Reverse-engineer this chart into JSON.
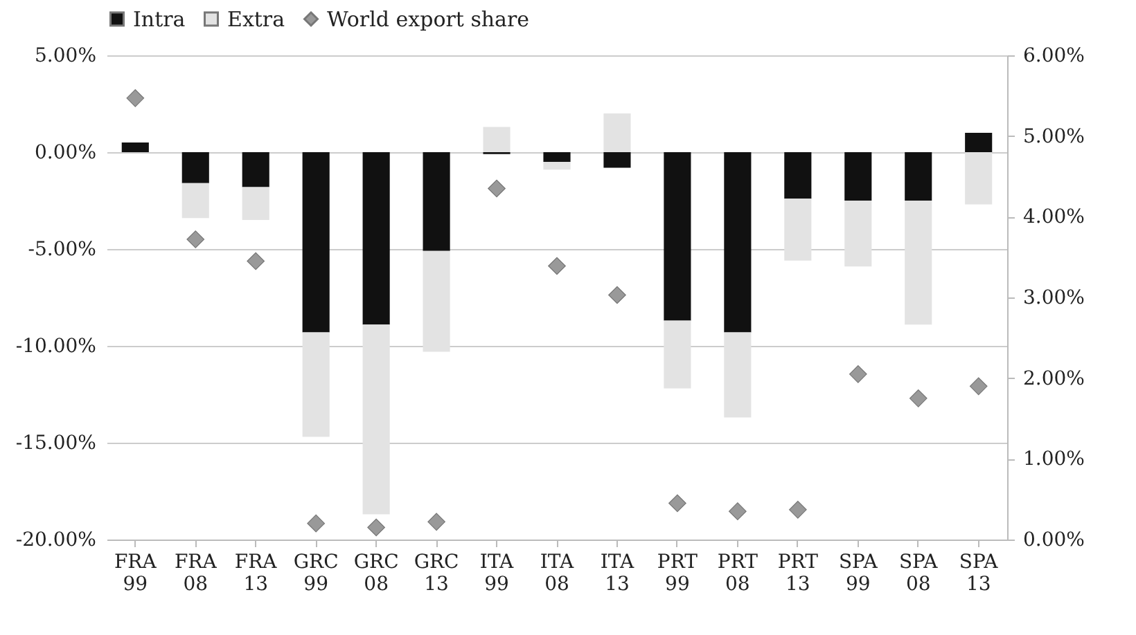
{
  "chart_data": {
    "type": "bar",
    "stacked": true,
    "legend": "top",
    "grid": "y",
    "marker": "diamond",
    "categories": [
      "FRA 99",
      "FRA 08",
      "FRA 13",
      "GRC 99",
      "GRC 08",
      "GRC 13",
      "ITA 99",
      "ITA 08",
      "ITA 13",
      "PRT 99",
      "PRT 08",
      "PRT 13",
      "SPA 99",
      "SPA 08",
      "SPA 13"
    ],
    "series": [
      {
        "name": "Intra",
        "color": "#111111",
        "values": [
          0.5,
          -1.6,
          -1.8,
          -9.3,
          -8.9,
          -5.1,
          -0.1,
          -0.5,
          -0.8,
          -8.7,
          -9.3,
          -2.4,
          -2.5,
          -2.5,
          1.0
        ]
      },
      {
        "name": "Extra",
        "color": "#e3e3e3",
        "values": [
          0,
          -1.8,
          -1.7,
          -5.4,
          -9.8,
          -5.2,
          1.3,
          -0.4,
          2.0,
          -3.5,
          -4.4,
          -3.2,
          -3.4,
          -6.4,
          -2.7
        ]
      },
      {
        "name": "World export share",
        "type": "scatter",
        "axis": "y2",
        "color": "#999999",
        "values": [
          5.47,
          3.72,
          3.45,
          0.2,
          0.15,
          0.22,
          4.35,
          3.39,
          3.03,
          0.45,
          0.35,
          0.37,
          2.05,
          1.75,
          1.9
        ]
      }
    ],
    "ylim": [
      -20,
      5
    ],
    "yticks": [
      {
        "value": -20,
        "label": "-20.00%"
      },
      {
        "value": -15,
        "label": "-15.00%"
      },
      {
        "value": -10,
        "label": "-10.00%"
      },
      {
        "value": -5,
        "label": "-5.00%"
      },
      {
        "value": 0,
        "label": "0.00%"
      },
      {
        "value": 5,
        "label": "5.00%"
      }
    ],
    "y2lim": [
      0,
      6
    ],
    "y2ticks": [
      {
        "value": 0,
        "label": "0.00%"
      },
      {
        "value": 1,
        "label": "1.00%"
      },
      {
        "value": 2,
        "label": "2.00%"
      },
      {
        "value": 3,
        "label": "3.00%"
      },
      {
        "value": 4,
        "label": "4.00%"
      },
      {
        "value": 5,
        "label": "5.00%"
      },
      {
        "value": 6,
        "label": "6.00%"
      }
    ]
  }
}
